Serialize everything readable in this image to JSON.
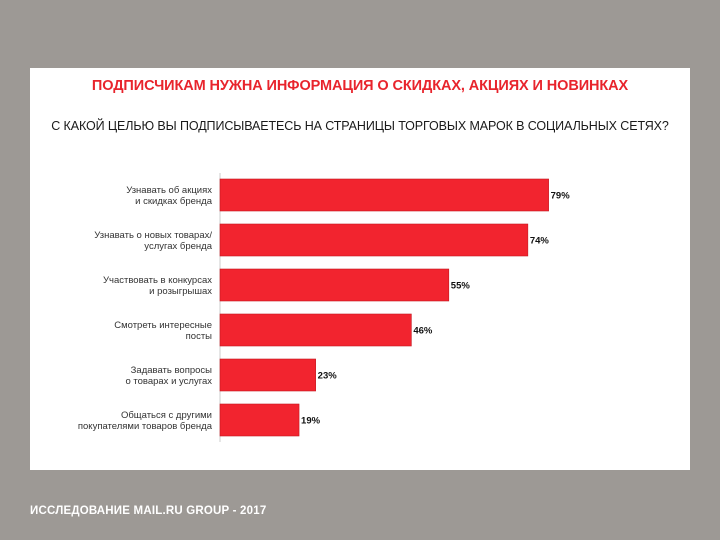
{
  "chart_data": {
    "type": "bar",
    "orientation": "horizontal",
    "title": "ПОДПИСЧИКАМ НУЖНА ИНФОРМАЦИЯ О СКИДКАХ, АКЦИЯХ И НОВИНКАХ",
    "subtitle": "С КАКОЙ ЦЕЛЬЮ ВЫ ПОДПИСЫВАЕТЕСЬ НА СТРАНИЦЫ ТОРГОВЫХ МАРОК В СОЦИАЛЬНЫХ СЕТЯХ?",
    "categories": [
      [
        "Узнавать об акциях",
        "и скидках бренда"
      ],
      [
        "Узнавать о новых товарах/",
        "услугах бренда"
      ],
      [
        "Участвовать в конкурсах",
        "и розыгрышах"
      ],
      [
        "Смотреть интересные",
        "посты"
      ],
      [
        "Задавать вопросы",
        "о товарах и услугах"
      ],
      [
        "Общаться с другими",
        "покупателями товаров бренда"
      ]
    ],
    "values": [
      79,
      74,
      55,
      46,
      23,
      19
    ],
    "value_labels": [
      "79%",
      "74%",
      "55%",
      "46%",
      "23%",
      "19%"
    ],
    "unit": "%",
    "xlim": [
      0,
      100
    ],
    "grid": false,
    "legend": "none",
    "colors": {
      "bar": "#f2242f",
      "bar_edge": "#c41a22",
      "title": "#e8242c",
      "axis_line": "#cccccc",
      "label_text": "#333333",
      "value_text": "#111111"
    }
  },
  "footer": "ИССЛЕДОВАНИЕ MAIL.RU GROUP - 2017"
}
